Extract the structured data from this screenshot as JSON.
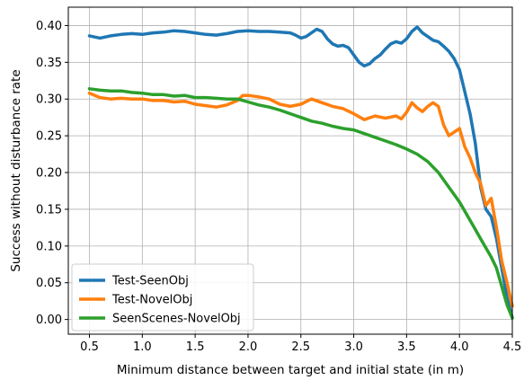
{
  "chart_data": {
    "type": "line",
    "title": "",
    "xlabel": "Minimum distance between target and initial state (in m)",
    "ylabel": "Success without disturbance rate",
    "xlim": [
      0.3,
      4.5
    ],
    "ylim": [
      -0.02,
      0.425
    ],
    "xticks": [
      0.5,
      1.0,
      1.5,
      2.0,
      2.5,
      3.0,
      3.5,
      4.0,
      4.5
    ],
    "xtick_labels": [
      "0.5",
      "1.0",
      "1.5",
      "2.0",
      "2.5",
      "3.0",
      "3.5",
      "4.0",
      "4.5"
    ],
    "yticks": [
      0.0,
      0.05,
      0.1,
      0.15,
      0.2,
      0.25,
      0.3,
      0.35,
      0.4
    ],
    "ytick_labels": [
      "0.00",
      "0.05",
      "0.10",
      "0.15",
      "0.20",
      "0.25",
      "0.30",
      "0.35",
      "0.40"
    ],
    "grid": true,
    "legend_position": "bottom-left",
    "series": [
      {
        "name": "Test-SeenObj",
        "color": "#1f77b4",
        "points": [
          [
            0.5,
            0.386
          ],
          [
            0.6,
            0.383
          ],
          [
            0.7,
            0.386
          ],
          [
            0.8,
            0.388
          ],
          [
            0.9,
            0.389
          ],
          [
            1.0,
            0.388
          ],
          [
            1.1,
            0.39
          ],
          [
            1.2,
            0.391
          ],
          [
            1.3,
            0.393
          ],
          [
            1.4,
            0.392
          ],
          [
            1.5,
            0.39
          ],
          [
            1.6,
            0.388
          ],
          [
            1.7,
            0.387
          ],
          [
            1.8,
            0.389
          ],
          [
            1.9,
            0.392
          ],
          [
            2.0,
            0.393
          ],
          [
            2.1,
            0.392
          ],
          [
            2.2,
            0.392
          ],
          [
            2.3,
            0.391
          ],
          [
            2.4,
            0.39
          ],
          [
            2.45,
            0.387
          ],
          [
            2.5,
            0.383
          ],
          [
            2.55,
            0.385
          ],
          [
            2.6,
            0.39
          ],
          [
            2.65,
            0.395
          ],
          [
            2.7,
            0.392
          ],
          [
            2.75,
            0.382
          ],
          [
            2.8,
            0.375
          ],
          [
            2.85,
            0.372
          ],
          [
            2.9,
            0.373
          ],
          [
            2.95,
            0.37
          ],
          [
            3.0,
            0.36
          ],
          [
            3.05,
            0.35
          ],
          [
            3.1,
            0.345
          ],
          [
            3.15,
            0.348
          ],
          [
            3.2,
            0.355
          ],
          [
            3.25,
            0.36
          ],
          [
            3.3,
            0.368
          ],
          [
            3.35,
            0.375
          ],
          [
            3.4,
            0.378
          ],
          [
            3.45,
            0.376
          ],
          [
            3.5,
            0.382
          ],
          [
            3.55,
            0.392
          ],
          [
            3.6,
            0.398
          ],
          [
            3.65,
            0.39
          ],
          [
            3.7,
            0.385
          ],
          [
            3.75,
            0.38
          ],
          [
            3.8,
            0.378
          ],
          [
            3.85,
            0.372
          ],
          [
            3.9,
            0.365
          ],
          [
            3.95,
            0.355
          ],
          [
            4.0,
            0.34
          ],
          [
            4.05,
            0.31
          ],
          [
            4.1,
            0.28
          ],
          [
            4.15,
            0.24
          ],
          [
            4.2,
            0.18
          ],
          [
            4.25,
            0.15
          ],
          [
            4.3,
            0.14
          ],
          [
            4.35,
            0.11
          ],
          [
            4.4,
            0.07
          ],
          [
            4.45,
            0.03
          ],
          [
            4.5,
            0.002
          ]
        ]
      },
      {
        "name": "Test-NovelObj",
        "color": "#ff7f0e",
        "points": [
          [
            0.5,
            0.308
          ],
          [
            0.6,
            0.302
          ],
          [
            0.7,
            0.3
          ],
          [
            0.8,
            0.301
          ],
          [
            0.9,
            0.3
          ],
          [
            1.0,
            0.3
          ],
          [
            1.1,
            0.298
          ],
          [
            1.2,
            0.298
          ],
          [
            1.3,
            0.296
          ],
          [
            1.4,
            0.297
          ],
          [
            1.5,
            0.293
          ],
          [
            1.6,
            0.291
          ],
          [
            1.7,
            0.289
          ],
          [
            1.8,
            0.292
          ],
          [
            1.9,
            0.298
          ],
          [
            1.95,
            0.305
          ],
          [
            2.0,
            0.305
          ],
          [
            2.1,
            0.303
          ],
          [
            2.2,
            0.3
          ],
          [
            2.3,
            0.293
          ],
          [
            2.4,
            0.29
          ],
          [
            2.5,
            0.293
          ],
          [
            2.6,
            0.3
          ],
          [
            2.7,
            0.295
          ],
          [
            2.8,
            0.29
          ],
          [
            2.9,
            0.287
          ],
          [
            3.0,
            0.28
          ],
          [
            3.1,
            0.272
          ],
          [
            3.2,
            0.277
          ],
          [
            3.3,
            0.274
          ],
          [
            3.4,
            0.277
          ],
          [
            3.45,
            0.273
          ],
          [
            3.5,
            0.282
          ],
          [
            3.55,
            0.295
          ],
          [
            3.6,
            0.288
          ],
          [
            3.65,
            0.283
          ],
          [
            3.7,
            0.29
          ],
          [
            3.75,
            0.295
          ],
          [
            3.8,
            0.29
          ],
          [
            3.85,
            0.265
          ],
          [
            3.9,
            0.25
          ],
          [
            3.95,
            0.255
          ],
          [
            4.0,
            0.26
          ],
          [
            4.05,
            0.235
          ],
          [
            4.1,
            0.22
          ],
          [
            4.15,
            0.2
          ],
          [
            4.2,
            0.185
          ],
          [
            4.25,
            0.155
          ],
          [
            4.3,
            0.165
          ],
          [
            4.35,
            0.125
          ],
          [
            4.4,
            0.08
          ],
          [
            4.45,
            0.05
          ],
          [
            4.5,
            0.018
          ]
        ]
      },
      {
        "name": "SeenScenes-NovelObj",
        "color": "#2ca02c",
        "points": [
          [
            0.5,
            0.314
          ],
          [
            0.6,
            0.312
          ],
          [
            0.7,
            0.311
          ],
          [
            0.8,
            0.311
          ],
          [
            0.9,
            0.309
          ],
          [
            1.0,
            0.308
          ],
          [
            1.1,
            0.306
          ],
          [
            1.2,
            0.306
          ],
          [
            1.3,
            0.304
          ],
          [
            1.4,
            0.305
          ],
          [
            1.5,
            0.302
          ],
          [
            1.6,
            0.302
          ],
          [
            1.7,
            0.301
          ],
          [
            1.8,
            0.3
          ],
          [
            1.9,
            0.3
          ],
          [
            2.0,
            0.296
          ],
          [
            2.1,
            0.292
          ],
          [
            2.2,
            0.289
          ],
          [
            2.3,
            0.285
          ],
          [
            2.4,
            0.28
          ],
          [
            2.5,
            0.275
          ],
          [
            2.6,
            0.27
          ],
          [
            2.7,
            0.267
          ],
          [
            2.8,
            0.263
          ],
          [
            2.9,
            0.26
          ],
          [
            3.0,
            0.258
          ],
          [
            3.1,
            0.253
          ],
          [
            3.2,
            0.248
          ],
          [
            3.3,
            0.243
          ],
          [
            3.4,
            0.238
          ],
          [
            3.5,
            0.232
          ],
          [
            3.6,
            0.225
          ],
          [
            3.7,
            0.215
          ],
          [
            3.8,
            0.2
          ],
          [
            3.9,
            0.18
          ],
          [
            4.0,
            0.16
          ],
          [
            4.1,
            0.135
          ],
          [
            4.2,
            0.11
          ],
          [
            4.3,
            0.085
          ],
          [
            4.35,
            0.07
          ],
          [
            4.4,
            0.045
          ],
          [
            4.45,
            0.02
          ],
          [
            4.5,
            0.002
          ]
        ]
      }
    ]
  }
}
